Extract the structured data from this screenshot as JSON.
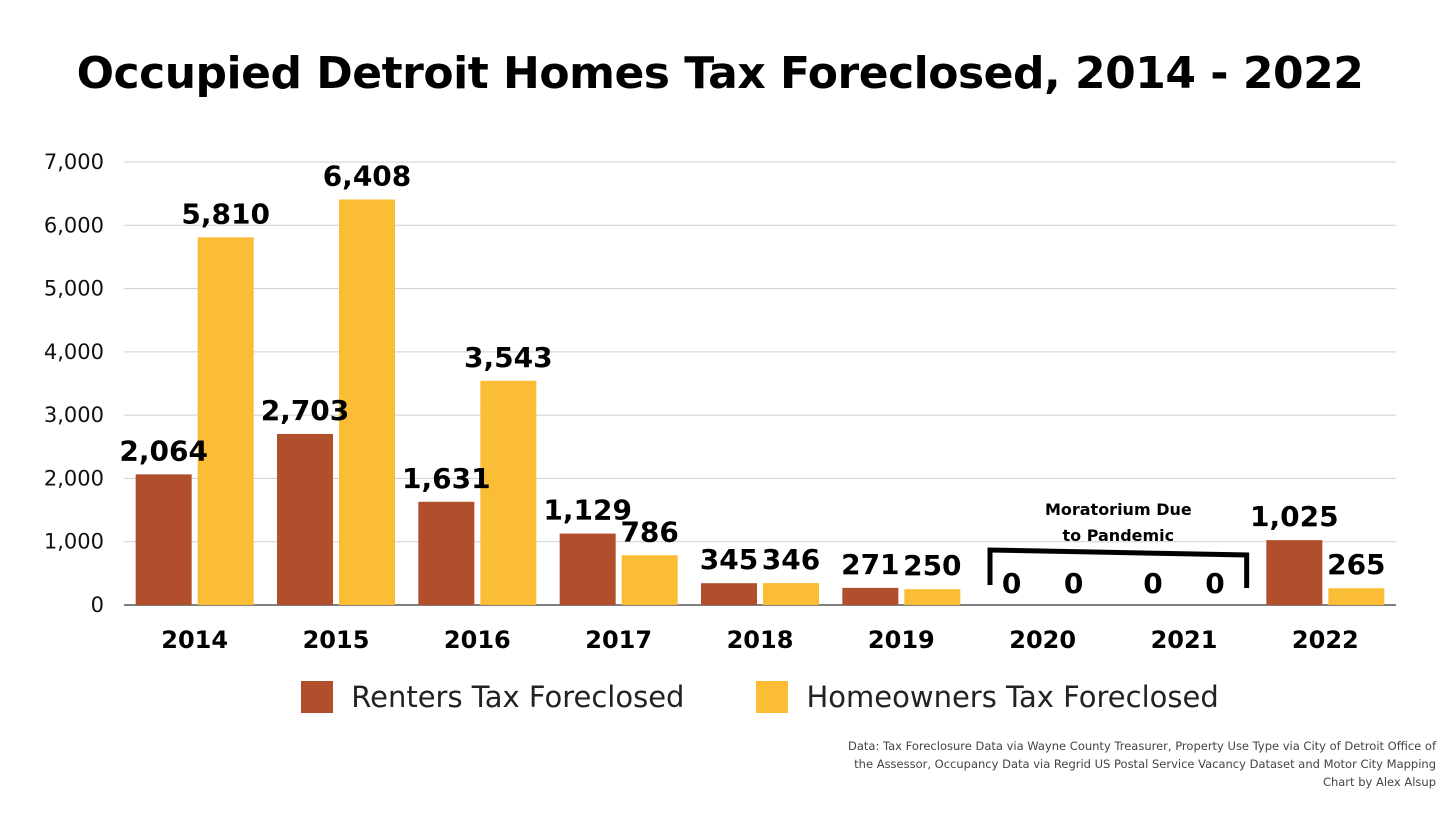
{
  "chart_data": {
    "type": "bar",
    "title": "Occupied Detroit Homes Tax Foreclosed, 2014 - 2022",
    "categories": [
      "2014",
      "2015",
      "2016",
      "2017",
      "2018",
      "2019",
      "2020",
      "2021",
      "2022"
    ],
    "series": [
      {
        "name": "Renters Tax Foreclosed",
        "color": "#b14e2b",
        "values": [
          2064,
          2703,
          1631,
          1129,
          345,
          271,
          0,
          0,
          1025
        ],
        "labels": [
          "2,064",
          "2,703",
          "1,631",
          "1,129",
          "345",
          "271",
          "0",
          "0",
          "1,025"
        ]
      },
      {
        "name": "Homeowners Tax Foreclosed",
        "color": "#fbbd36",
        "values": [
          5810,
          6408,
          3543,
          786,
          346,
          250,
          0,
          0,
          265
        ],
        "labels": [
          "5,810",
          "6,408",
          "3,543",
          "786",
          "346",
          "250",
          "0",
          "0",
          "265"
        ]
      }
    ],
    "ylim": [
      0,
      7000
    ],
    "yticks": [
      0,
      1000,
      2000,
      3000,
      4000,
      5000,
      6000,
      7000
    ],
    "ytick_labels": [
      "0",
      "1,000",
      "2,000",
      "3,000",
      "4,000",
      "5,000",
      "6,000",
      "7,000"
    ],
    "xlabel": "",
    "ylabel": "",
    "grid": true,
    "legend_position": "bottom",
    "annotation": {
      "lines": [
        "Moratorium Due",
        "to Pandemic"
      ],
      "applies_to": [
        "2020",
        "2021"
      ]
    }
  },
  "source_lines": [
    "Data: Tax Foreclosure Data via Wayne County Treasurer, Property Use Type via City of Detroit Office of",
    "the Assessor, Occupancy Data via Regrid US Postal Service Vacancy Dataset and Motor City Mapping",
    "Chart by Alex Alsup"
  ]
}
